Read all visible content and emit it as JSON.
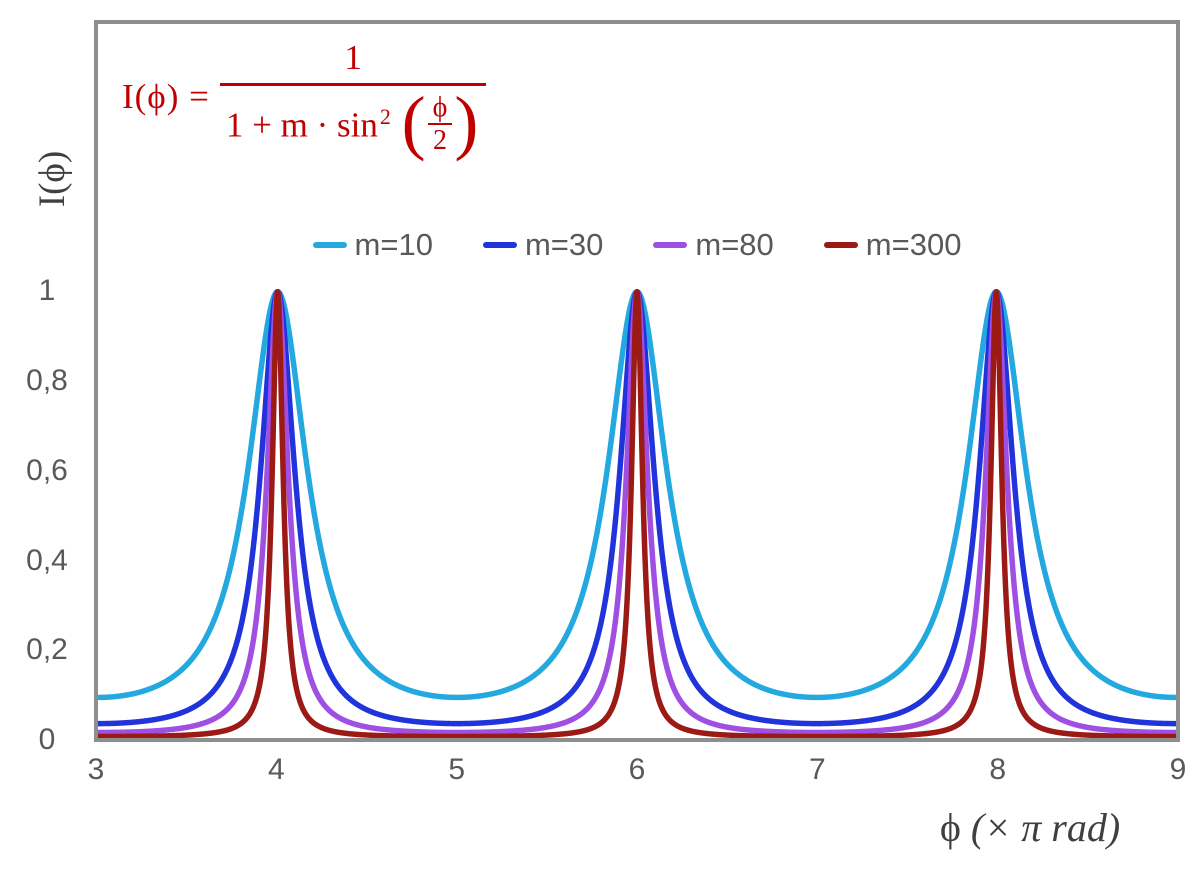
{
  "formula": {
    "lhs": "I(ϕ) =",
    "numerator": "1",
    "denominator_prefix": "1 + m · sin",
    "denominator_exponent": "2",
    "lparen": "(",
    "rparen": ")",
    "inner_numerator": "ϕ",
    "inner_denominator": "2",
    "color": "#C00000"
  },
  "axes": {
    "y_title": "I(ϕ)",
    "x_title_symbol": "ϕ",
    "x_title_unit": " (× π rad)"
  },
  "colors": {
    "formula_red": "#C00000",
    "axis_border_gray": "#8E8E8E",
    "tick_text_gray": "#595959",
    "axis_title_gray": "#404040"
  },
  "chart_data": {
    "type": "line",
    "title": "",
    "function": "I(phi) = 1 / (1 + m * sin^2(phi/2))",
    "xlabel": "ϕ (× π rad)",
    "ylabel": "I(ϕ)",
    "x_range": [
      3,
      9
    ],
    "y_range": [
      0,
      1.6
    ],
    "x_ticks": [
      3,
      4,
      5,
      6,
      7,
      8,
      9
    ],
    "y_ticks": [
      {
        "value": 0,
        "label": "0"
      },
      {
        "value": 0.2,
        "label": "0,2"
      },
      {
        "value": 0.4,
        "label": "0,4"
      },
      {
        "value": 0.6,
        "label": "0,6"
      },
      {
        "value": 0.8,
        "label": "0,8"
      },
      {
        "value": 1,
        "label": "1"
      }
    ],
    "grid": false,
    "legend_position": "top-center",
    "series": [
      {
        "name": "m=10",
        "m": 10,
        "color": "#23A9E0",
        "peak_value": 1,
        "min_value": 0.0909
      },
      {
        "name": "m=30",
        "m": 30,
        "color": "#2133DB",
        "peak_value": 1,
        "min_value": 0.0323
      },
      {
        "name": "m=80",
        "m": 80,
        "color": "#A04FE3",
        "peak_value": 1,
        "min_value": 0.0123
      },
      {
        "name": "m=300",
        "m": 300,
        "color": "#9C1A15",
        "peak_value": 1,
        "min_value": 0.0033
      }
    ],
    "peaks": {
      "x": [
        4,
        6,
        8
      ],
      "value": 1
    },
    "minima": {
      "x": [
        3,
        5,
        7,
        9
      ]
    }
  }
}
